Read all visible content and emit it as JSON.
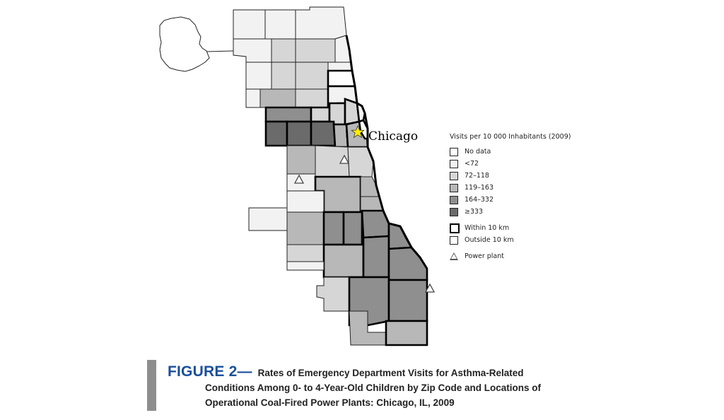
{
  "map": {
    "city_name": "Chicago",
    "fill_colors": {
      "no_data": "#ffffff",
      "lt72": "#f2f2f2",
      "c72_118": "#d6d6d6",
      "c119_163": "#b8b8b8",
      "c164_332": "#8f8f8f",
      "ge333": "#6b6b6b"
    },
    "markers": [
      "star-icon",
      "triangle-icon"
    ]
  },
  "legend": {
    "title": "Visits per 10 000 Inhabitants (2009)",
    "items": [
      {
        "label": "No data",
        "color": "#ffffff"
      },
      {
        "label": "<72",
        "color": "#f2f2f2"
      },
      {
        "label": "72–118",
        "color": "#d6d6d6"
      },
      {
        "label": "119–163",
        "color": "#b8b8b8"
      },
      {
        "label": "164–332",
        "color": "#8f8f8f"
      },
      {
        "label": "≥333",
        "color": "#6b6b6b"
      }
    ],
    "within": "Within 10 km",
    "outside": "Outside 10 km",
    "power_plant": "Power plant"
  },
  "caption": {
    "label": "FIGURE 2—",
    "line1": "Rates of Emergency Department Visits for Asthma-Related",
    "line2": "Conditions Among 0- to 4-Year-Old Children by Zip Code and Locations of",
    "line3": "Operational Coal-Fired Power Plants: Chicago, IL, 2009",
    "label_color": "#1b4f9c"
  }
}
